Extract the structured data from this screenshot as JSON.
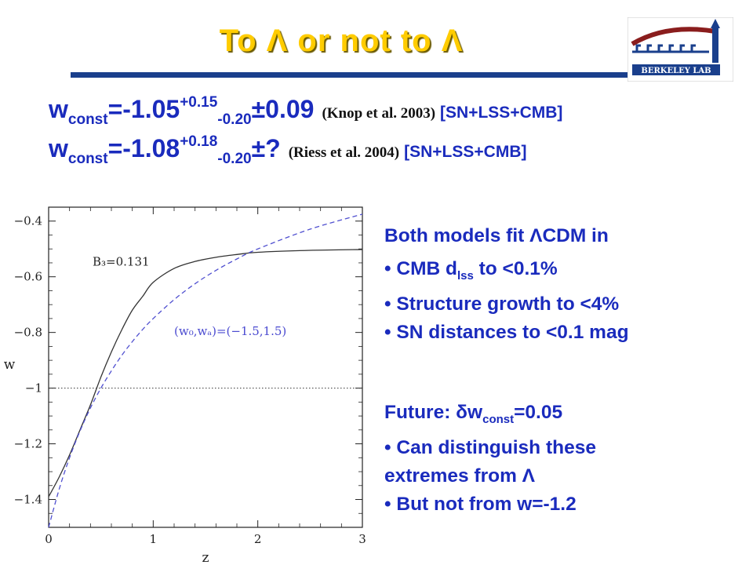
{
  "slide": {
    "title": "To Λ or not to Λ",
    "logo_text": "BERKELEY LAB",
    "eq1": {
      "lhs": "w",
      "sub": "const",
      "value": "=-1.05",
      "plus": "+0.15",
      "minus": "-0.20",
      "pm": "±0.09",
      "ref": "(Knop et al. 2003)",
      "tag": "[SN+LSS+CMB]"
    },
    "eq2": {
      "lhs": "w",
      "sub": "const",
      "value": "=-1.08",
      "plus": "+0.18",
      "minus": "-0.20",
      "pm": "±?",
      "ref": "(Riess et al. 2004)",
      "tag": "[SN+LSS+CMB]"
    },
    "panel1": {
      "heading": "Both models fit ΛCDM in",
      "b1_pre": "• CMB d",
      "b1_sub": "lss",
      "b1_post": " to <0.1%",
      "b2": "• Structure growth to <4%",
      "b3": "• SN distances to <0.1 mag"
    },
    "panel2": {
      "future_pre": "Future: δw",
      "future_sub": "const",
      "future_post": "=0.05",
      "b1": "• Can distinguish these",
      "b1b": "extremes from Λ",
      "b2": "• But not from w=-1.2"
    },
    "colors": {
      "title": "#ffcc00",
      "bar": "#1a3f8c",
      "text_blue": "#1a2bbd",
      "curve_black": "#333333",
      "curve_blue": "#5050d0"
    }
  },
  "chart_data": {
    "type": "line",
    "xlabel": "z",
    "ylabel": "w",
    "xlim": [
      0,
      3
    ],
    "ylim": [
      -1.5,
      -0.35
    ],
    "xticks": [
      "0",
      "1",
      "2",
      "3"
    ],
    "yticks": [
      "−0.4",
      "−0.6",
      "−0.8",
      "−1",
      "−1.2",
      "−1.4"
    ],
    "ytick_values": [
      -0.4,
      -0.6,
      -0.8,
      -1.0,
      -1.2,
      -1.4
    ],
    "reference_line": -1.0,
    "annotations": [
      "B₃=0.131",
      "(w₀,wₐ)=(−1.5,1.5)"
    ],
    "series": [
      {
        "name": "B₃=0.131",
        "style": "solid",
        "x": [
          0,
          0.1,
          0.2,
          0.3,
          0.4,
          0.5,
          0.6,
          0.7,
          0.8,
          0.9,
          1.0,
          1.2,
          1.4,
          1.6,
          1.8,
          2.0,
          2.5,
          3.0
        ],
        "y": [
          -1.39,
          -1.32,
          -1.24,
          -1.15,
          -1.06,
          -0.96,
          -0.87,
          -0.79,
          -0.72,
          -0.67,
          -0.62,
          -0.57,
          -0.545,
          -0.53,
          -0.52,
          -0.512,
          -0.505,
          -0.502
        ]
      },
      {
        "name": "(w₀,wₐ)=(−1.5,1.5)",
        "style": "dashed",
        "x": [
          0,
          0.1,
          0.2,
          0.3,
          0.4,
          0.5,
          0.6,
          0.7,
          0.8,
          0.9,
          1.0,
          1.2,
          1.4,
          1.6,
          1.8,
          2.0,
          2.5,
          3.0
        ],
        "y": [
          -1.5,
          -1.364,
          -1.25,
          -1.154,
          -1.071,
          -1.0,
          -0.938,
          -0.882,
          -0.833,
          -0.789,
          -0.75,
          -0.682,
          -0.625,
          -0.577,
          -0.536,
          -0.5,
          -0.429,
          -0.375
        ]
      }
    ]
  }
}
